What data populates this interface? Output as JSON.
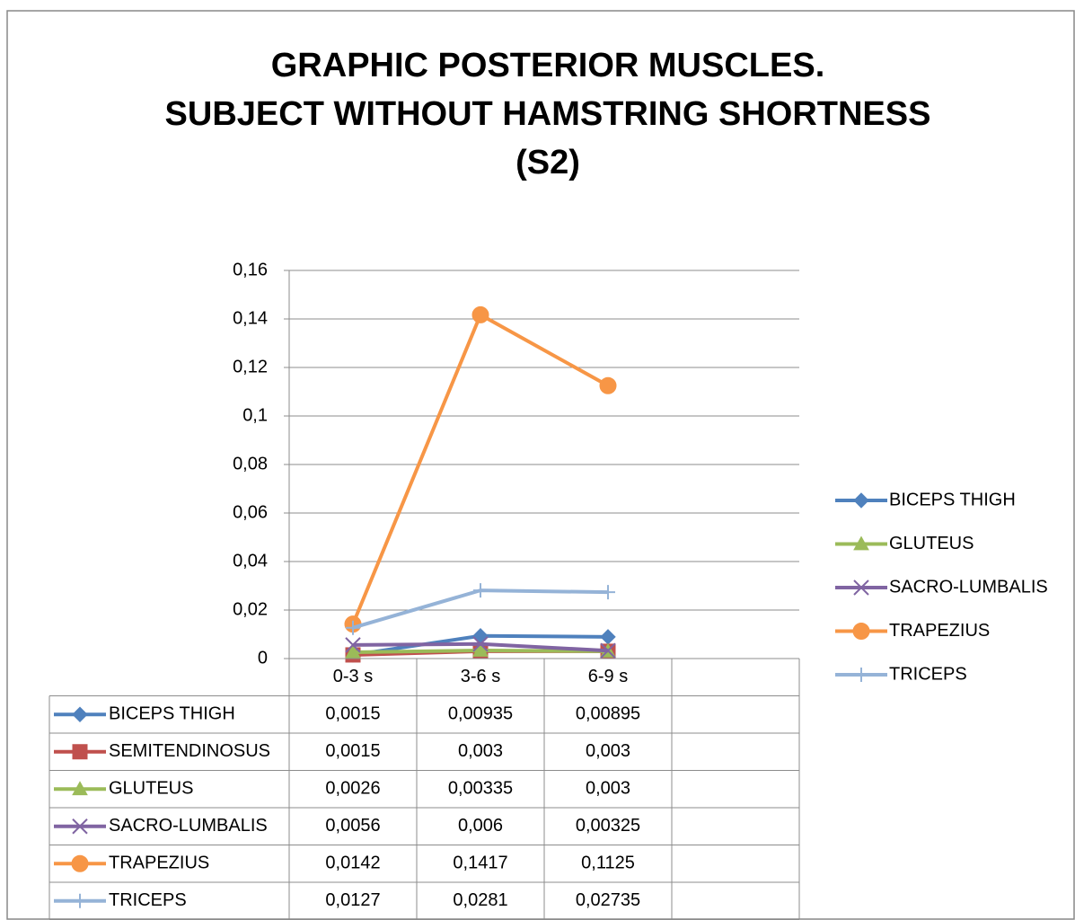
{
  "chart_data": {
    "type": "line",
    "title": [
      "GRAPHIC POSTERIOR MUSCLES.",
      "SUBJECT WITHOUT HAMSTRING SHORTNESS",
      "(S2)"
    ],
    "categories": [
      "0-3 s",
      "3-6 s",
      "6-9 s",
      null
    ],
    "series": [
      {
        "name": "BICEPS THIGH",
        "color": "#4f81bd",
        "marker": "diamond",
        "values": [
          0.0015,
          0.00935,
          0.00895,
          null
        ],
        "value_labels": [
          "0,0015",
          "0,00935",
          "0,00895",
          null
        ]
      },
      {
        "name": "SEMITENDINOSUS",
        "color": "#c0504d",
        "marker": "square",
        "in_legend": false,
        "values": [
          0.0015,
          0.003,
          0.003,
          null
        ],
        "value_labels": [
          "0,0015",
          "0,003",
          "0,003",
          null
        ]
      },
      {
        "name": "GLUTEUS",
        "color": "#9bbb59",
        "marker": "triangle",
        "values": [
          0.0026,
          0.00335,
          0.003,
          null
        ],
        "value_labels": [
          "0,0026",
          "0,00335",
          "0,003",
          null
        ]
      },
      {
        "name": "SACRO-LUMBALIS",
        "color": "#8064a2",
        "marker": "x",
        "values": [
          0.0056,
          0.006,
          0.00325,
          null
        ],
        "value_labels": [
          "0,0056",
          "0,006",
          "0,00325",
          null
        ]
      },
      {
        "name": "TRAPEZIUS",
        "color": "#f79646",
        "marker": "circle",
        "values": [
          0.0142,
          0.1417,
          0.1125,
          null
        ],
        "value_labels": [
          "0,0142",
          "0,1417",
          "0,1125",
          null
        ]
      },
      {
        "name": "TRICEPS",
        "color": "#95b3d7",
        "marker": "plus",
        "values": [
          0.0127,
          0.0281,
          0.02735,
          null
        ],
        "value_labels": [
          "0,0127",
          "0,0281",
          "0,02735",
          null
        ]
      }
    ],
    "ylim": [
      0,
      0.16
    ],
    "yticks": [
      0,
      {
        "value": 0.02,
        "label": "0,02"
      },
      {
        "value": 0.04,
        "label": "0,04"
      },
      {
        "value": 0.06,
        "label": "0,06"
      },
      {
        "value": 0.08,
        "label": "0,08"
      },
      {
        "value": 0.1,
        "label": "0,1"
      },
      {
        "value": 0.12,
        "label": "0,12"
      },
      {
        "value": 0.14,
        "label": "0,14"
      },
      {
        "value": 0.16,
        "label": "0,16"
      }
    ],
    "grid": true,
    "legend": "right",
    "data_table": true
  }
}
